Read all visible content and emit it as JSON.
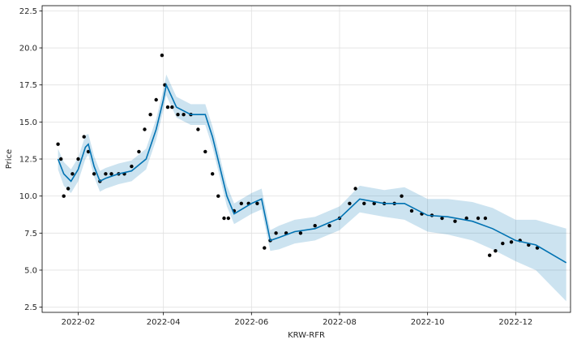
{
  "chart_data": {
    "type": "scatter",
    "title": "",
    "xlabel": "KRW-RFR",
    "ylabel": "Price",
    "xlim": [
      "2022-01-07",
      "2023-01-08"
    ],
    "ylim": [
      2.15,
      22.85
    ],
    "grid": true,
    "x_ticks": [
      "2022-02",
      "2022-04",
      "2022-06",
      "2022-08",
      "2022-10",
      "2022-12"
    ],
    "y_ticks": [
      2.5,
      5.0,
      7.5,
      10.0,
      12.5,
      15.0,
      17.5,
      20.0,
      22.5
    ],
    "y_tick_labels": [
      "2.5",
      "5.0",
      "7.5",
      "10.0",
      "12.5",
      "15.0",
      "17.5",
      "20.0",
      "22.5"
    ],
    "colors": {
      "points": "#000000",
      "forecast": "#0072B2",
      "interval": "#0072B2"
    },
    "series": [
      {
        "kind": "observed",
        "x": [
          "2022-01-18",
          "2022-01-20",
          "2022-01-22",
          "2022-01-25",
          "2022-01-28",
          "2022-02-01",
          "2022-02-05",
          "2022-02-08",
          "2022-02-12",
          "2022-02-16",
          "2022-02-20",
          "2022-02-24",
          "2022-03-01",
          "2022-03-05",
          "2022-03-10",
          "2022-03-15",
          "2022-03-19",
          "2022-03-23",
          "2022-03-27",
          "2022-03-31",
          "2022-04-02",
          "2022-04-04",
          "2022-04-07",
          "2022-04-11",
          "2022-04-15",
          "2022-04-20",
          "2022-04-25",
          "2022-04-30",
          "2022-05-05",
          "2022-05-09",
          "2022-05-13",
          "2022-05-16",
          "2022-05-20",
          "2022-05-25",
          "2022-05-30",
          "2022-06-05",
          "2022-06-10",
          "2022-06-14",
          "2022-06-18",
          "2022-06-25",
          "2022-07-05",
          "2022-07-15",
          "2022-07-25",
          "2022-08-01",
          "2022-08-08",
          "2022-08-12",
          "2022-08-18",
          "2022-08-25",
          "2022-09-01",
          "2022-09-08",
          "2022-09-13",
          "2022-09-20",
          "2022-09-27",
          "2022-10-04",
          "2022-10-11",
          "2022-10-20",
          "2022-10-28",
          "2022-11-05",
          "2022-11-10",
          "2022-11-13",
          "2022-11-17",
          "2022-11-22",
          "2022-11-28",
          "2022-12-04",
          "2022-12-10",
          "2022-12-16"
        ],
        "y": [
          13.5,
          12.5,
          10.0,
          10.5,
          11.5,
          12.5,
          14.0,
          13.0,
          11.5,
          11.0,
          11.5,
          11.5,
          11.5,
          11.5,
          12.0,
          13.0,
          14.5,
          15.5,
          16.5,
          19.5,
          17.5,
          16.0,
          16.0,
          15.5,
          15.5,
          15.5,
          14.5,
          13.0,
          11.5,
          10.0,
          8.5,
          8.5,
          9.0,
          9.5,
          9.5,
          9.5,
          6.5,
          7.0,
          7.5,
          7.5,
          7.5,
          8.0,
          8.0,
          8.5,
          9.5,
          10.5,
          9.5,
          9.5,
          9.5,
          9.5,
          10.0,
          9.0,
          8.8,
          8.7,
          8.5,
          8.3,
          8.5,
          8.5,
          8.5,
          6.0,
          6.3,
          6.8,
          6.9,
          7.0,
          6.7,
          6.5
        ]
      },
      {
        "kind": "forecast",
        "x": [
          "2022-01-18",
          "2022-01-22",
          "2022-01-27",
          "2022-02-01",
          "2022-02-06",
          "2022-02-08",
          "2022-02-12",
          "2022-02-16",
          "2022-02-20",
          "2022-03-01",
          "2022-03-10",
          "2022-03-20",
          "2022-03-27",
          "2022-04-01",
          "2022-04-03",
          "2022-04-10",
          "2022-04-20",
          "2022-04-30",
          "2022-05-05",
          "2022-05-10",
          "2022-05-15",
          "2022-05-20",
          "2022-06-01",
          "2022-06-08",
          "2022-06-14",
          "2022-06-20",
          "2022-07-01",
          "2022-07-15",
          "2022-08-01",
          "2022-08-15",
          "2022-09-01",
          "2022-09-15",
          "2022-10-01",
          "2022-10-15",
          "2022-11-01",
          "2022-11-15",
          "2022-12-01",
          "2022-12-15",
          "2023-01-05"
        ],
        "y": [
          12.5,
          11.5,
          11.0,
          11.8,
          13.3,
          13.5,
          12.0,
          11.0,
          11.2,
          11.5,
          11.7,
          12.5,
          14.5,
          16.5,
          17.5,
          16.0,
          15.5,
          15.5,
          14.0,
          12.0,
          10.0,
          8.8,
          9.5,
          9.8,
          7.0,
          7.2,
          7.6,
          7.8,
          8.5,
          9.8,
          9.5,
          9.5,
          8.7,
          8.6,
          8.3,
          7.8,
          7.0,
          6.7,
          5.5
        ]
      },
      {
        "kind": "uncertainty",
        "lower": [
          11.8,
          10.7,
          10.2,
          11.0,
          12.5,
          12.8,
          11.3,
          10.3,
          10.5,
          10.8,
          11.0,
          11.8,
          13.8,
          15.8,
          16.8,
          15.3,
          14.8,
          14.8,
          13.3,
          11.3,
          9.3,
          8.1,
          8.8,
          9.1,
          6.3,
          6.4,
          6.8,
          7.0,
          7.7,
          8.9,
          8.6,
          8.4,
          7.6,
          7.4,
          7.0,
          6.4,
          5.6,
          5.0,
          2.9
        ],
        "upper": [
          13.2,
          12.3,
          11.8,
          12.6,
          14.1,
          14.2,
          12.7,
          11.7,
          11.9,
          12.2,
          12.4,
          13.2,
          15.2,
          17.2,
          18.2,
          16.7,
          16.2,
          16.2,
          14.7,
          12.7,
          10.7,
          9.5,
          10.2,
          10.5,
          7.7,
          8.0,
          8.4,
          8.6,
          9.3,
          10.7,
          10.4,
          10.6,
          9.8,
          9.8,
          9.6,
          9.2,
          8.4,
          8.4,
          7.8
        ]
      }
    ]
  }
}
